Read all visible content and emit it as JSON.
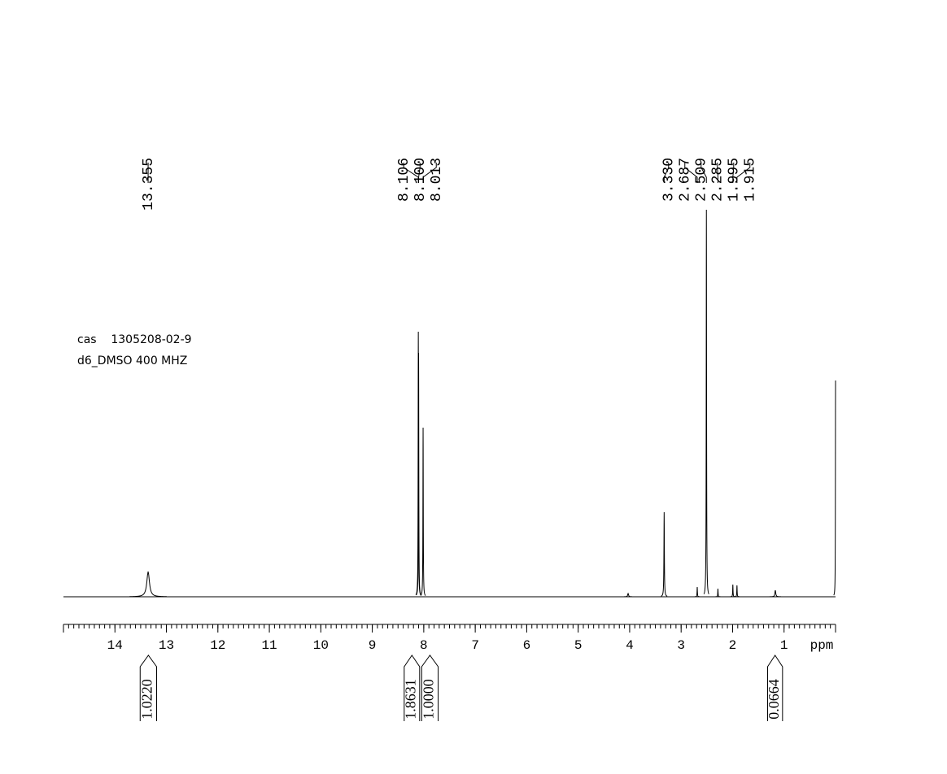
{
  "chart_data": {
    "type": "spectrum",
    "annotations": [
      "cas    1305208-02-9",
      "d6_DMSO 400 MHZ"
    ],
    "x_label": "ppm",
    "xlim": [
      15,
      0
    ],
    "xticks": [
      14,
      13,
      12,
      11,
      10,
      9,
      8,
      7,
      6,
      5,
      4,
      3,
      2,
      1
    ],
    "xminor_step": 0.1,
    "ylim": [
      0,
      500
    ],
    "color": "#000000",
    "peaks": [
      {
        "x": 13.355,
        "height": 31,
        "half_width": 0.03
      },
      {
        "x": 8.106,
        "height": 326,
        "half_width": 0.004
      },
      {
        "x": 8.1,
        "height": 300,
        "half_width": 0.004
      },
      {
        "x": 8.013,
        "height": 208,
        "half_width": 0.004
      },
      {
        "x": 4.03,
        "height": 4,
        "half_width": 0.01
      },
      {
        "x": 3.33,
        "height": 104,
        "half_width": 0.005
      },
      {
        "x": 2.687,
        "height": 12,
        "half_width": 0.004
      },
      {
        "x": 2.509,
        "height": 476,
        "half_width": 0.004
      },
      {
        "x": 2.285,
        "height": 10,
        "half_width": 0.004
      },
      {
        "x": 1.995,
        "height": 15,
        "half_width": 0.004
      },
      {
        "x": 1.915,
        "height": 14,
        "half_width": 0.004
      },
      {
        "x": 1.17,
        "height": 8,
        "half_width": 0.01
      },
      {
        "x": 0,
        "height": 266,
        "half_width": 0.003
      }
    ],
    "peak_labels": [
      {
        "value": 13.355,
        "label": "13.355"
      },
      {
        "value": 8.106,
        "label": "8.106"
      },
      {
        "value": 8.1,
        "label": "8.100"
      },
      {
        "value": 8.013,
        "label": "8.013"
      },
      {
        "value": 3.33,
        "label": "3.330"
      },
      {
        "value": 2.687,
        "label": "2.687"
      },
      {
        "value": 2.509,
        "label": "2.509"
      },
      {
        "value": 2.285,
        "label": "2.285"
      },
      {
        "value": 1.995,
        "label": "1.995"
      },
      {
        "value": 1.915,
        "label": "1.915"
      }
    ],
    "integrals": [
      {
        "value": 1.022,
        "label": "1.0220",
        "range": [
          13.51,
          13.19
        ]
      },
      {
        "value": 1.8631,
        "label": "1.8631",
        "range": [
          8.38,
          8.08
        ]
      },
      {
        "value": 1,
        "label": "1.0000",
        "range": [
          8.04,
          7.72
        ]
      },
      {
        "value": 0.0664,
        "label": "0.0664",
        "range": [
          1.32,
          1.03
        ]
      }
    ]
  }
}
